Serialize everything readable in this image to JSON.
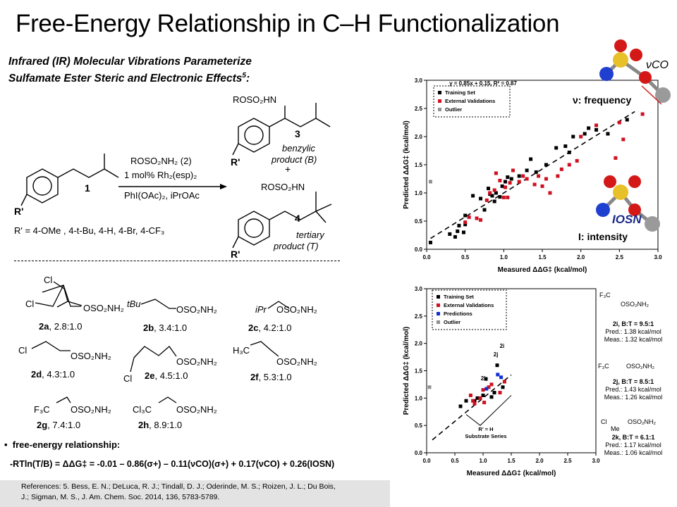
{
  "title": "Free-Energy Relationship in C–H Functionalization",
  "subtitle_line1": "Infrared (IR) Molecular Vibrations Parameterize",
  "subtitle_line2": "Sulfamate Ester Steric and Electronic Effects",
  "subtitle_ref": "5",
  "subtitle_colon": ":",
  "scheme": {
    "reagent_line1": "ROSO₂NH₂ (2)",
    "reagent_line2": "1 mol% Rh₂(esp)₂",
    "reagent_line3": "PhI(OAc)₂, iPrOAc",
    "substrate_label": "1",
    "r_prime": "R'",
    "r_prime_def": "R' = 4-OMe , 4-t-Bu, 4-H, 4-Br, 4-CF₃",
    "product_b_label": "3",
    "product_b_amine": "ROSO₂HN",
    "product_b_name1": "benzylic",
    "product_b_name2": "product (B)",
    "plus": "+",
    "product_t_label": "4",
    "product_t_amine": "ROSO₂HN",
    "product_t_name1": "tertiary",
    "product_t_name2": "product (T)"
  },
  "compounds": [
    {
      "id": "2a",
      "ratio": "2.8:1.0"
    },
    {
      "id": "2b",
      "ratio": "3.4:1.0"
    },
    {
      "id": "2c",
      "ratio": "4.2:1.0"
    },
    {
      "id": "2d",
      "ratio": "4.3:1.0"
    },
    {
      "id": "2e",
      "ratio": "4.5:1.0"
    },
    {
      "id": "2f",
      "ratio": "5.3:1.0"
    },
    {
      "id": "2g",
      "ratio": "7.4:1.0"
    },
    {
      "id": "2h",
      "ratio": "8.9:1.0"
    }
  ],
  "compound_labels": {
    "oso2nh2": "OSO₂NH₂",
    "cl": "Cl",
    "tbu": "tBu",
    "ipr": "iPr",
    "h3c": "H₃C",
    "f3c": "F₃C",
    "cl3c": "Cl₃C"
  },
  "fer_label": "free-energy relationship:",
  "equation": "-RTln(T/B) = ΔΔG‡ = -0.01 – 0.86(σ+) – 0.11(νCO)(σ+) + 0.17(νCO) + 0.26(IOSN)",
  "references": {
    "line1": "References: 5. Bess, E. N.; DeLuca, R. J.; Tindall, D. J.; Oderinde, M. S.; Roizen, J. L.; Du Bois,",
    "line2": "J.; Sigman, M. S., J. Am. Chem. Soc. 2014, 136, 5783-5789."
  },
  "vibration_labels": {
    "nu_co": "νCO",
    "frequency": "ν: frequency",
    "i_osn": "IOSN",
    "intensity": "I: intensity"
  },
  "colors": {
    "training": "#000000",
    "external": "#d01020",
    "prediction": "#1030d0",
    "outlier": "#909090"
  },
  "chart_data": [
    {
      "type": "scatter",
      "equation": "y = 0.85x + 0.15, R² = 0.87",
      "xlabel": "Measured ΔΔG‡ (kcal/mol)",
      "ylabel": "Predicted ΔΔG‡ (kcal/mol)",
      "xlim": [
        0.0,
        3.0
      ],
      "ylim": [
        0.0,
        3.0
      ],
      "xticks": [
        "0.0",
        "0.5",
        "1.0",
        "1.5",
        "2.0",
        "2.5",
        "3.0"
      ],
      "yticks": [
        "0.0",
        "0.5",
        "1.0",
        "1.5",
        "2.0",
        "2.5",
        "3.0"
      ],
      "legend": [
        "Training Set",
        "External Validations",
        "Outlier"
      ],
      "fit": {
        "slope": 0.85,
        "intercept": 0.15
      },
      "series": [
        {
          "name": "Training Set",
          "points": [
            [
              0.05,
              0.12
            ],
            [
              0.3,
              0.27
            ],
            [
              0.37,
              0.22
            ],
            [
              0.4,
              0.32
            ],
            [
              0.42,
              0.42
            ],
            [
              0.48,
              0.3
            ],
            [
              0.5,
              0.44
            ],
            [
              0.5,
              0.6
            ],
            [
              0.6,
              0.95
            ],
            [
              0.7,
              0.9
            ],
            [
              0.75,
              0.7
            ],
            [
              0.8,
              1.08
            ],
            [
              0.82,
              0.98
            ],
            [
              0.85,
              0.95
            ],
            [
              0.88,
              0.85
            ],
            [
              0.9,
              1.0
            ],
            [
              0.95,
              0.93
            ],
            [
              0.98,
              1.12
            ],
            [
              1.02,
              1.2
            ],
            [
              1.05,
              1.28
            ],
            [
              1.1,
              1.25
            ],
            [
              1.2,
              1.3
            ],
            [
              1.3,
              1.4
            ],
            [
              1.35,
              1.6
            ],
            [
              1.42,
              1.37
            ],
            [
              1.55,
              1.5
            ],
            [
              1.68,
              1.8
            ],
            [
              1.8,
              1.83
            ],
            [
              1.85,
              1.72
            ],
            [
              1.9,
              2.0
            ],
            [
              2.05,
              2.05
            ],
            [
              2.1,
              2.15
            ],
            [
              2.2,
              2.12
            ],
            [
              2.35,
              2.05
            ],
            [
              2.6,
              2.3
            ]
          ]
        },
        {
          "name": "External Validations",
          "points": [
            [
              0.5,
              0.48
            ],
            [
              0.55,
              0.57
            ],
            [
              0.65,
              0.55
            ],
            [
              0.7,
              0.52
            ],
            [
              0.78,
              0.87
            ],
            [
              0.82,
              1.0
            ],
            [
              0.88,
              1.05
            ],
            [
              0.9,
              1.35
            ],
            [
              0.95,
              1.22
            ],
            [
              1.0,
              0.92
            ],
            [
              1.02,
              1.1
            ],
            [
              1.05,
              0.92
            ],
            [
              1.08,
              1.18
            ],
            [
              1.12,
              1.4
            ],
            [
              1.2,
              1.2
            ],
            [
              1.25,
              1.3
            ],
            [
              1.3,
              1.25
            ],
            [
              1.4,
              1.15
            ],
            [
              1.45,
              1.3
            ],
            [
              1.5,
              1.12
            ],
            [
              1.55,
              1.25
            ],
            [
              1.6,
              1.0
            ],
            [
              1.7,
              1.3
            ],
            [
              1.75,
              1.42
            ],
            [
              1.85,
              1.5
            ],
            [
              1.95,
              1.57
            ],
            [
              2.0,
              2.0
            ],
            [
              2.2,
              2.2
            ],
            [
              2.45,
              1.62
            ],
            [
              2.5,
              2.25
            ],
            [
              2.55,
              1.95
            ],
            [
              2.8,
              2.4
            ]
          ]
        },
        {
          "name": "Outlier",
          "points": [
            [
              0.05,
              1.2
            ]
          ]
        }
      ]
    },
    {
      "type": "scatter",
      "xlabel": "Measured ΔΔG‡ (kcal/mol)",
      "ylabel": "Predicted ΔΔG‡ (kcal/mol)",
      "xlim": [
        0.0,
        3.0
      ],
      "ylim": [
        0.0,
        3.0
      ],
      "xticks": [
        "0.0",
        "0.5",
        "1.0",
        "1.5",
        "2.0",
        "2.5",
        "3.0"
      ],
      "yticks": [
        "0.0",
        "0.5",
        "1.0",
        "1.5",
        "2.0",
        "2.5",
        "3.0"
      ],
      "legend": [
        "Training Set",
        "External Validations",
        "Predictions",
        "Outlier"
      ],
      "fit": {
        "slope": 0.85,
        "intercept": 0.15
      },
      "annotations": {
        "k": "2k",
        "j": "2j",
        "i": "2i",
        "bracket_line1": "R' = H",
        "bracket_line2": "Substrate Series"
      },
      "compound_notes": [
        {
          "label": "2i, B:T = 9.5:1",
          "pred": "Pred.: 1.38 kcal/mol",
          "meas": "Meas.: 1.32 kcal/mol"
        },
        {
          "label": "2j, B:T = 8.5:1",
          "pred": "Pred.: 1.43 kcal/mol",
          "meas": "Meas.: 1.26 kcal/mol"
        },
        {
          "label": "2k, B:T = 6.1:1",
          "pred": "Pred.: 1.17 kcal/mol",
          "meas": "Meas.: 1.06 kcal/mol"
        }
      ],
      "structure_labels": {
        "f3c": "F₃C",
        "f": "F",
        "oso2nh2": "OSO₂NH₂",
        "cl": "Cl",
        "me": "Me"
      },
      "series": [
        {
          "name": "Training Set",
          "points": [
            [
              0.6,
              0.85
            ],
            [
              0.7,
              0.95
            ],
            [
              0.85,
              0.95
            ],
            [
              0.9,
              1.0
            ],
            [
              1.0,
              1.05
            ],
            [
              1.05,
              1.35
            ],
            [
              1.15,
              1.02
            ],
            [
              1.2,
              1.1
            ],
            [
              1.25,
              1.6
            ],
            [
              1.35,
              1.2
            ]
          ]
        },
        {
          "name": "External Validations",
          "points": [
            [
              0.78,
              1.05
            ],
            [
              0.82,
              0.95
            ],
            [
              0.85,
              0.9
            ],
            [
              0.95,
              1.0
            ],
            [
              1.0,
              1.15
            ],
            [
              1.02,
              0.92
            ],
            [
              1.1,
              1.2
            ],
            [
              1.15,
              1.25
            ],
            [
              1.3,
              1.1
            ],
            [
              1.38,
              1.3
            ]
          ]
        },
        {
          "name": "Predictions",
          "points": [
            [
              1.06,
              1.17
            ],
            [
              1.26,
              1.43
            ],
            [
              1.32,
              1.38
            ]
          ]
        },
        {
          "name": "Outlier",
          "points": [
            [
              0.05,
              1.2
            ]
          ]
        }
      ]
    }
  ]
}
